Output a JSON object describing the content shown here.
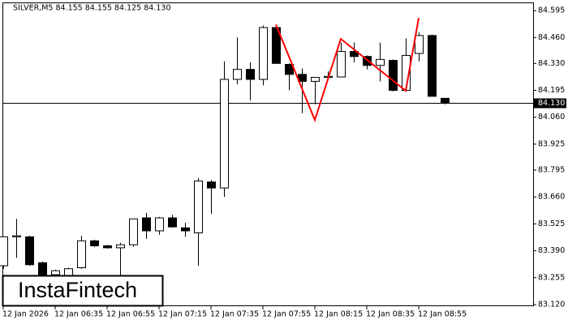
{
  "chart_data": {
    "type": "candlestick",
    "title": "SILVER,M5  84.155 84.155 84.125 84.130",
    "logo": "InstaFintech",
    "categories": [
      "12 Jan 2026",
      null,
      null,
      null,
      "12 Jan 06:35",
      null,
      null,
      null,
      "12 Jan 06:55",
      null,
      null,
      null,
      "12 Jan 07:15",
      null,
      null,
      null,
      "12 Jan 07:35",
      null,
      null,
      null,
      "12 Jan 07:55",
      null,
      null,
      null,
      "12 Jan 08:15",
      null,
      null,
      null,
      "12 Jan 08:35",
      null,
      null,
      null,
      "12 Jan 08:55",
      null,
      null
    ],
    "open": [
      83.315,
      83.46,
      83.46,
      83.33,
      83.27,
      83.26,
      83.305,
      83.44,
      83.415,
      83.405,
      83.42,
      83.555,
      83.49,
      83.555,
      83.505,
      83.48,
      83.735,
      83.705,
      84.25,
      84.3,
      84.25,
      84.51,
      84.325,
      84.275,
      84.24,
      84.26,
      84.262,
      84.39,
      84.365,
      84.32,
      84.345,
      84.195,
      84.38,
      84.47,
      84.155
    ],
    "high": [
      83.46,
      83.55,
      83.465,
      83.335,
      83.295,
      83.305,
      83.465,
      83.445,
      83.42,
      83.43,
      83.55,
      83.58,
      83.56,
      83.57,
      83.53,
      83.755,
      83.745,
      84.34,
      84.46,
      84.335,
      84.52,
      84.525,
      84.33,
      84.305,
      84.262,
      84.29,
      84.435,
      84.435,
      84.37,
      84.435,
      84.35,
      84.455,
      84.485,
      84.475,
      84.155
    ],
    "low": [
      83.3,
      83.355,
      83.315,
      83.25,
      83.24,
      83.25,
      83.3,
      83.41,
      83.4,
      83.26,
      83.41,
      83.45,
      83.47,
      83.505,
      83.46,
      83.315,
      83.575,
      83.66,
      84.225,
      84.145,
      84.22,
      84.33,
      84.195,
      84.08,
      84.125,
      84.25,
      84.26,
      84.335,
      84.3,
      84.24,
      84.19,
      84.19,
      84.34,
      84.165,
      84.125
    ],
    "close": [
      83.46,
      83.465,
      83.32,
      83.27,
      83.29,
      83.3,
      83.44,
      83.415,
      83.405,
      83.42,
      83.55,
      83.49,
      83.555,
      83.51,
      83.49,
      83.74,
      83.705,
      84.25,
      84.3,
      84.25,
      84.51,
      84.33,
      84.275,
      84.24,
      84.26,
      84.265,
      84.39,
      84.365,
      84.32,
      84.35,
      84.195,
      84.37,
      84.47,
      84.165,
      84.13
    ],
    "up_color": "#ffffff",
    "down_color": "#000000",
    "edge_color": "#000000",
    "current_price": {
      "value": 84.13,
      "label": "84.130"
    },
    "pattern": {
      "color": "#ff0000",
      "index": [
        21,
        24,
        26,
        31,
        32
      ],
      "values": [
        84.525,
        84.046,
        84.453,
        84.193,
        84.558
      ]
    },
    "ylim": [
      83.112,
      84.636
    ],
    "yticks": [
      84.595,
      {
        "value": 84.46,
        "label": "84.460"
      },
      {
        "value": 84.33,
        "label": "84.330"
      },
      84.195,
      {
        "value": 84.06,
        "label": "84.060"
      },
      83.925,
      83.795,
      {
        "value": 83.66,
        "label": "83.660"
      },
      83.525,
      {
        "value": 83.39,
        "label": "83.390"
      },
      83.255,
      {
        "value": 83.12,
        "label": "83.120"
      }
    ]
  }
}
